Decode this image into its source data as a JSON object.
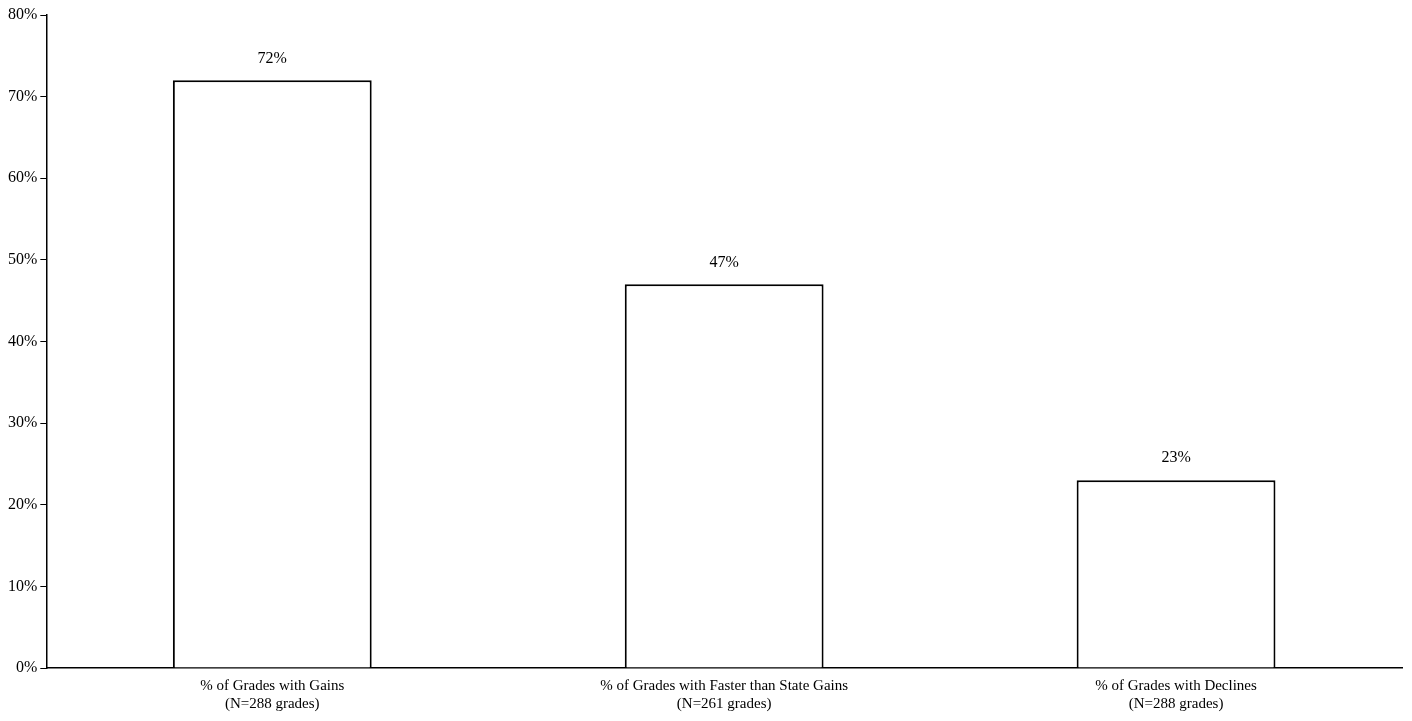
{
  "chart_data": {
    "type": "bar",
    "categories": [
      "% of Grades with Gains\n(N=288 grades)",
      "% of Grades with Faster than State Gains\n(N=261 grades)",
      "% of Grades with Declines\n(N=288 grades)"
    ],
    "values": [
      72,
      47,
      23
    ],
    "color": "#ffffff",
    "value_labels": [
      "72%",
      "47%",
      "23%"
    ],
    "ylim": [
      0,
      80
    ],
    "yticks": [
      {
        "value": 0,
        "label": "0%"
      },
      {
        "value": 10,
        "label": "10%"
      },
      {
        "value": 20,
        "label": "20%"
      },
      {
        "value": 30,
        "label": "30%"
      },
      {
        "value": 40,
        "label": "40%"
      },
      {
        "value": 50,
        "label": "50%"
      },
      {
        "value": 60,
        "label": "60%"
      },
      {
        "value": 70,
        "label": "70%"
      },
      {
        "value": 80,
        "label": "80%"
      }
    ],
    "grid": false,
    "legend": false
  }
}
